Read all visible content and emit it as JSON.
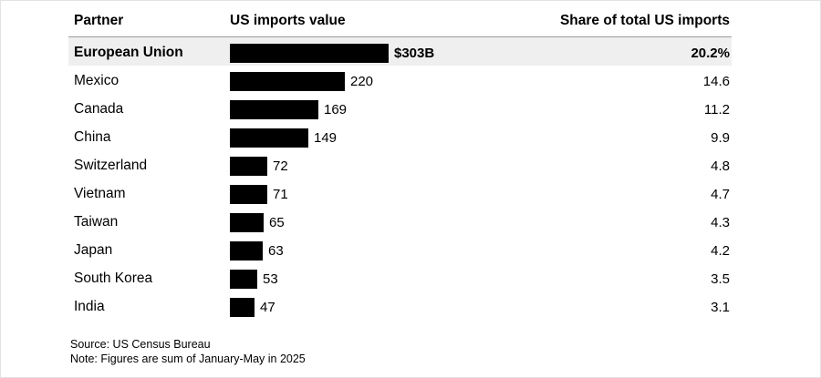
{
  "chart_data": {
    "type": "bar",
    "orientation": "horizontal",
    "columns": {
      "partner": "Partner",
      "value": "US imports value",
      "share": "Share of total US imports"
    },
    "categories": [
      "European Union",
      "Mexico",
      "Canada",
      "China",
      "Switzerland",
      "Vietnam",
      "Taiwan",
      "Japan",
      "South Korea",
      "India"
    ],
    "values": [
      303,
      220,
      169,
      149,
      72,
      71,
      65,
      63,
      53,
      47
    ],
    "value_labels": [
      "$303B",
      "220",
      "169",
      "149",
      "72",
      "71",
      "65",
      "63",
      "53",
      "47"
    ],
    "shares": [
      "20.2%",
      "14.6",
      "11.2",
      "9.9",
      "4.8",
      "4.7",
      "4.3",
      "4.2",
      "3.5",
      "3.1"
    ],
    "highlighted": "European Union",
    "xlim": [
      0,
      303
    ],
    "bar_color": "#000000",
    "highlight_row_color": "#efefef"
  },
  "footer": {
    "source": "Source: US Census Bureau",
    "note": "Note: Figures are sum of January-May in 2025"
  }
}
